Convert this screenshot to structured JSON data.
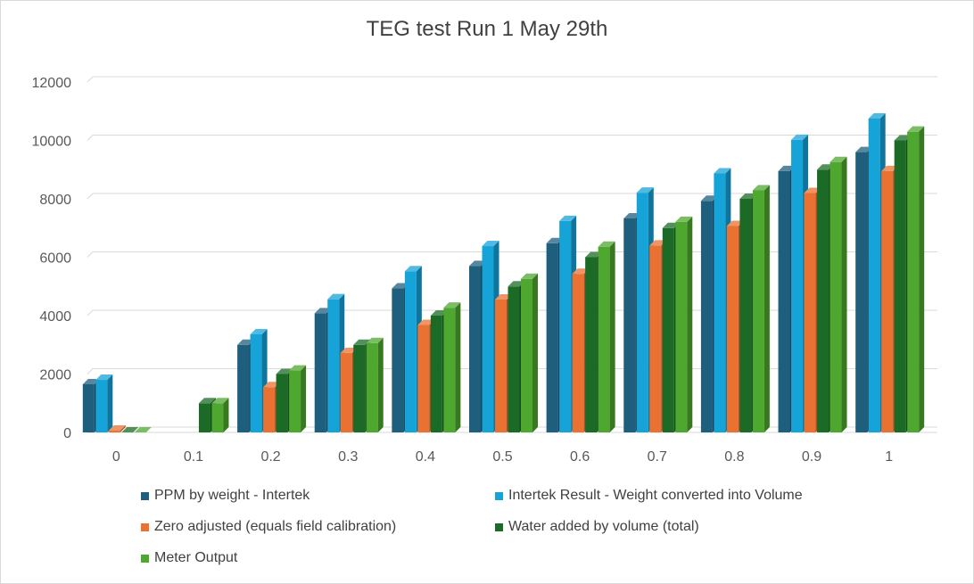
{
  "chart_data": {
    "type": "bar",
    "title": "TEG test Run 1 May 29th",
    "xlabel": "",
    "ylabel": "",
    "categories": [
      "0",
      "0.1",
      "0.2",
      "0.3",
      "0.4",
      "0.5",
      "0.6",
      "0.7",
      "0.8",
      "0.9",
      "1"
    ],
    "ylim": [
      0,
      12000
    ],
    "yticks": [
      "0",
      "2000",
      "4000",
      "6000",
      "8000",
      "10000",
      "12000"
    ],
    "grid": true,
    "legend_position": "bottom",
    "style": "3d-clustered-column",
    "series": [
      {
        "name": "PPM by weight - Intertek",
        "color": "#1f5f7e",
        "values": [
          1650,
          null,
          3000,
          4080,
          4930,
          5700,
          6480,
          7330,
          7930,
          8950,
          9600
        ]
      },
      {
        "name": "Intertek Result - Weight converted into Volume",
        "color": "#16a3d8",
        "values": [
          1800,
          null,
          3360,
          4560,
          5520,
          6380,
          7240,
          8210,
          8870,
          10020,
          10750
        ]
      },
      {
        "name": "Zero adjusted (equals field calibration)",
        "color": "#e97132",
        "values": [
          60,
          null,
          1550,
          2720,
          3680,
          4550,
          5430,
          6400,
          7070,
          8200,
          8950
        ]
      },
      {
        "name": "Water added by volume (total)",
        "color": "#1b6b26",
        "values": [
          0,
          1000,
          2000,
          3000,
          4000,
          5000,
          6000,
          7000,
          8000,
          9000,
          10000
        ]
      },
      {
        "name": "Meter Output",
        "color": "#4ea72e",
        "values": [
          0,
          1000,
          2120,
          3060,
          4270,
          5260,
          6360,
          7210,
          8290,
          9260,
          10300
        ]
      }
    ]
  }
}
